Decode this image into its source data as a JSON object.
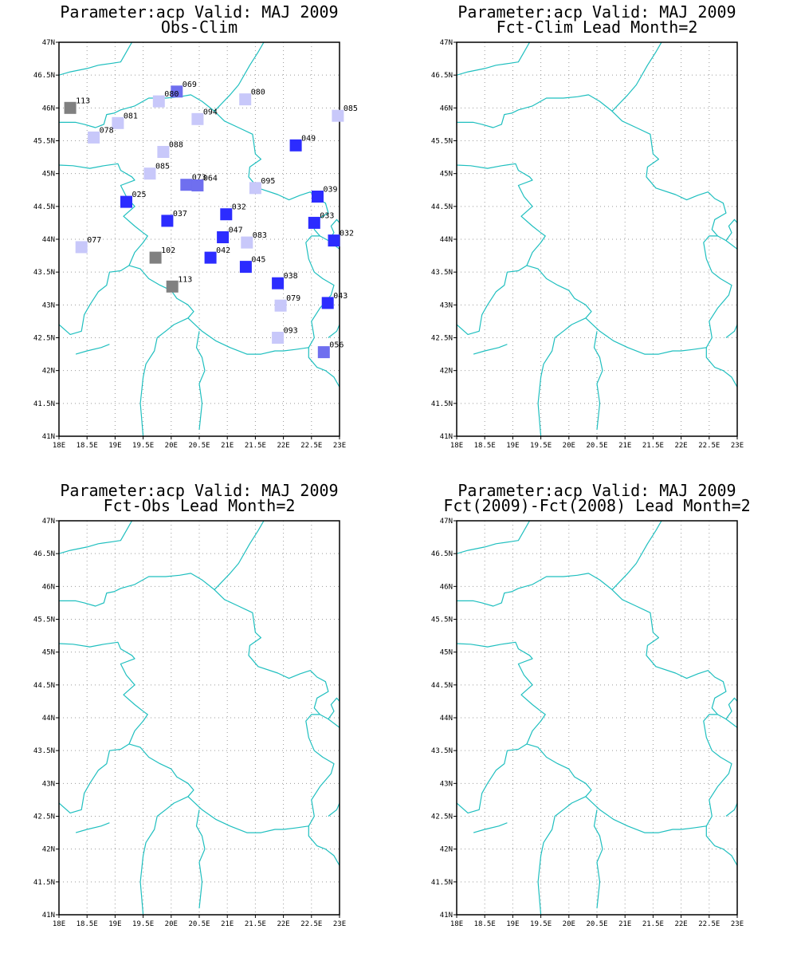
{
  "colors": {
    "frame": "#000000",
    "grid": "#9a9a9a",
    "border": "#1fbfbf",
    "heavy_deficit": "#2c2cff",
    "moderate_deficit": "#6f6fef",
    "light_deficit": "#c8c8fa",
    "surplus": "#808080"
  },
  "lat_ticks": [
    "47N",
    "46.5N",
    "46N",
    "45.5N",
    "45N",
    "44.5N",
    "44N",
    "43.5N",
    "43N",
    "42.5N",
    "42N",
    "41.5N",
    "41N"
  ],
  "lon_ticks": [
    "18E",
    "18.5E",
    "19E",
    "19.5E",
    "20E",
    "20.5E",
    "21E",
    "21.5E",
    "22E",
    "22.5E",
    "23E"
  ],
  "panels": [
    {
      "title_1": "Parameter:acp Valid: MAJ 2009",
      "title_2": "Obs-Clim"
    },
    {
      "title_1": "Parameter:acp Valid: MAJ 2009",
      "title_2": "Fct-Clim Lead Month=2"
    },
    {
      "title_1": "Parameter:acp Valid: MAJ 2009",
      "title_2": "Fct-Obs Lead Month=2"
    },
    {
      "title_1": "Parameter:acp Valid: MAJ 2009",
      "title_2": "Fct(2009)-Fct(2008) Lead Month=2"
    }
  ],
  "chart_data": {
    "type": "scatter",
    "map_extent": {
      "lon": [
        18,
        23
      ],
      "lat": [
        41,
        47
      ]
    },
    "grid": true,
    "stations": [
      {
        "lon": 18.2,
        "lat": 46.0,
        "value": "113"
      },
      {
        "lon": 20.1,
        "lat": 46.25,
        "value": "069"
      },
      {
        "lon": 19.78,
        "lat": 46.1,
        "value": "080"
      },
      {
        "lon": 21.32,
        "lat": 46.13,
        "value": "080"
      },
      {
        "lon": 22.97,
        "lat": 45.88,
        "value": "085"
      },
      {
        "lon": 20.47,
        "lat": 45.83,
        "value": "094"
      },
      {
        "lon": 19.05,
        "lat": 45.77,
        "value": "081"
      },
      {
        "lon": 18.62,
        "lat": 45.55,
        "value": "078"
      },
      {
        "lon": 22.22,
        "lat": 45.43,
        "value": "049"
      },
      {
        "lon": 19.86,
        "lat": 45.33,
        "value": "088"
      },
      {
        "lon": 19.62,
        "lat": 45.0,
        "value": "085"
      },
      {
        "lon": 20.27,
        "lat": 44.83,
        "value": "073"
      },
      {
        "lon": 20.47,
        "lat": 44.82,
        "value": "064"
      },
      {
        "lon": 21.5,
        "lat": 44.78,
        "value": "095"
      },
      {
        "lon": 22.61,
        "lat": 44.65,
        "value": "039"
      },
      {
        "lon": 19.2,
        "lat": 44.57,
        "value": "025"
      },
      {
        "lon": 20.98,
        "lat": 44.38,
        "value": "032"
      },
      {
        "lon": 19.93,
        "lat": 44.28,
        "value": "037"
      },
      {
        "lon": 22.55,
        "lat": 44.25,
        "value": "033"
      },
      {
        "lon": 20.92,
        "lat": 44.03,
        "value": "047"
      },
      {
        "lon": 22.9,
        "lat": 43.98,
        "value": "032"
      },
      {
        "lon": 21.35,
        "lat": 43.95,
        "value": "083"
      },
      {
        "lon": 18.4,
        "lat": 43.88,
        "value": "077"
      },
      {
        "lon": 19.72,
        "lat": 43.72,
        "value": "102"
      },
      {
        "lon": 20.7,
        "lat": 43.72,
        "value": "042"
      },
      {
        "lon": 21.33,
        "lat": 43.58,
        "value": "045"
      },
      {
        "lon": 21.9,
        "lat": 43.33,
        "value": "038"
      },
      {
        "lon": 20.02,
        "lat": 43.28,
        "value": "113"
      },
      {
        "lon": 22.79,
        "lat": 43.03,
        "value": "043"
      },
      {
        "lon": 21.95,
        "lat": 42.99,
        "value": "079"
      },
      {
        "lon": 21.9,
        "lat": 42.5,
        "value": "093"
      },
      {
        "lon": 22.72,
        "lat": 42.28,
        "value": "056"
      }
    ]
  }
}
